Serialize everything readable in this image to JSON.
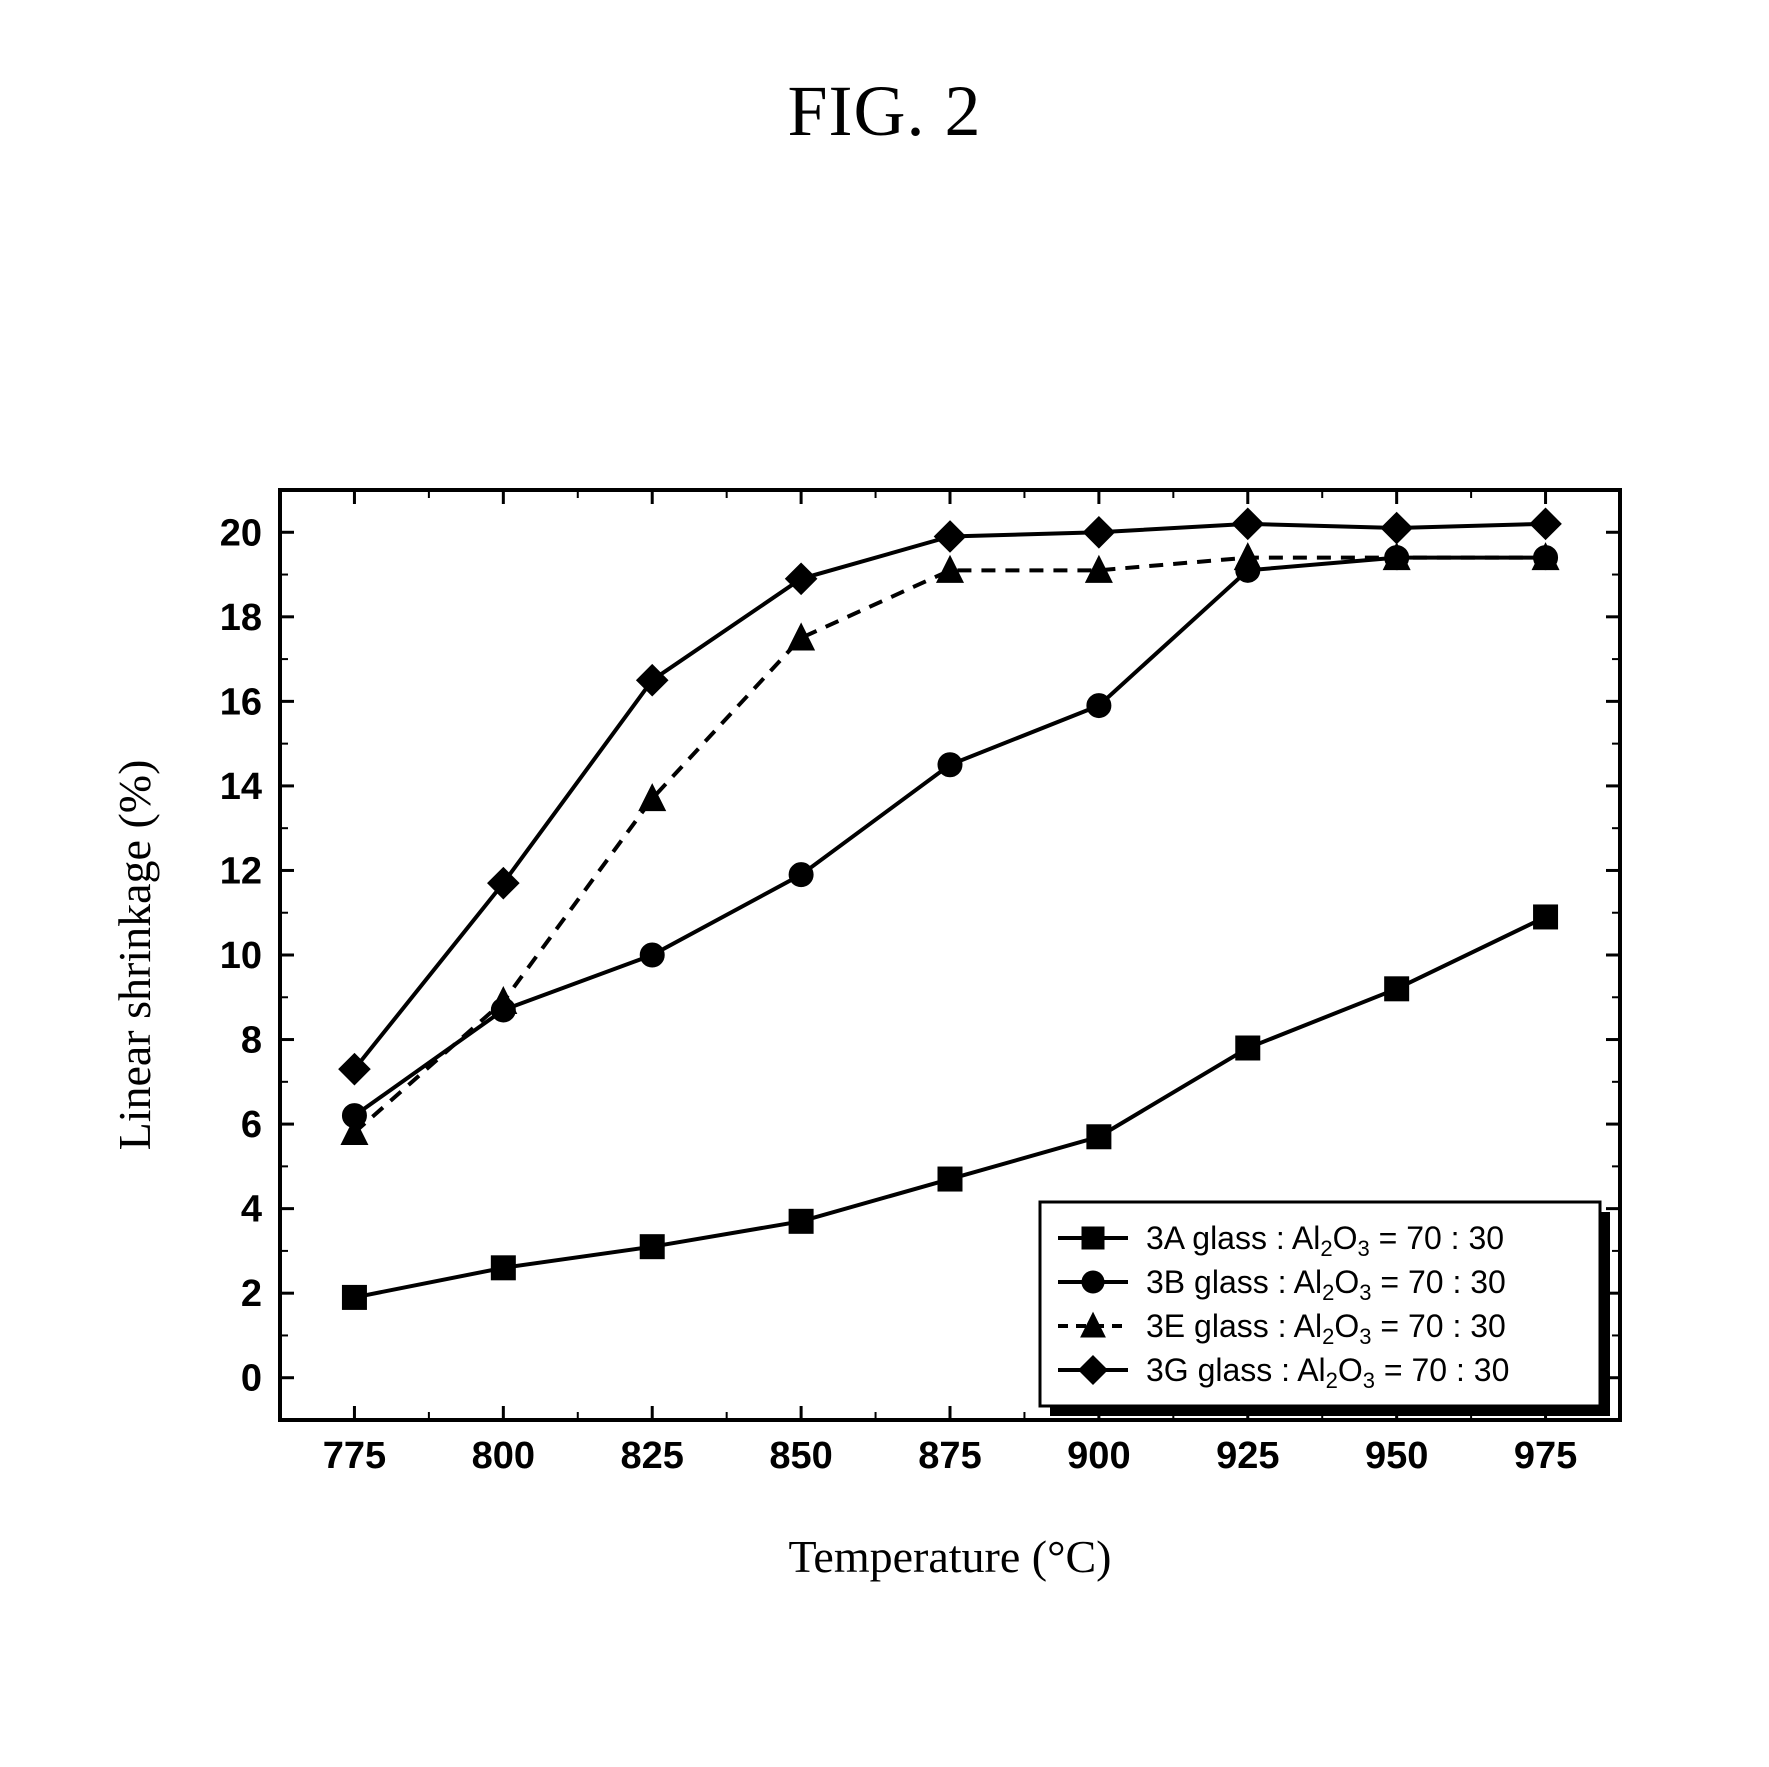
{
  "figure": {
    "title": "FIG. 2",
    "x_axis_label": "Temperature (°C)",
    "y_axis_label": "Linear shrinkage (%)",
    "background_color": "#ffffff",
    "axis_color": "#000000",
    "tick_inside": true,
    "xlim": [
      762.5,
      987.5
    ],
    "ylim": [
      -1,
      21
    ],
    "xticks": [
      775,
      800,
      825,
      850,
      875,
      900,
      925,
      950,
      975
    ],
    "yticks": [
      0,
      2,
      4,
      6,
      8,
      10,
      12,
      14,
      16,
      18,
      20
    ],
    "tick_font_size": 38,
    "tick_font_weight": 700,
    "axis_label_font_size": 46,
    "line_width": 4,
    "marker_size": 12,
    "legend": {
      "position": "bottom-right",
      "bg": "#ffffff",
      "border_color": "#000000",
      "shadow_color": "#000000",
      "title": null,
      "items": [
        {
          "label_prefix": "3A glass : Al",
          "label_sub": "2",
          "label_mid": "O",
          "label_sub2": "3",
          "label_suffix": " = 70 : 30",
          "series_key": "3A"
        },
        {
          "label_prefix": "3B glass : Al",
          "label_sub": "2",
          "label_mid": "O",
          "label_sub2": "3",
          "label_suffix": " = 70 : 30",
          "series_key": "3B"
        },
        {
          "label_prefix": "3E glass : Al",
          "label_sub": "2",
          "label_mid": "O",
          "label_sub2": "3",
          "label_suffix": " = 70 : 30",
          "series_key": "3E"
        },
        {
          "label_prefix": "3G glass : Al",
          "label_sub": "2",
          "label_mid": "O",
          "label_sub2": "3",
          "label_suffix": " = 70 : 30",
          "series_key": "3G"
        }
      ]
    },
    "series": {
      "3A": {
        "marker": "square",
        "dash": "solid",
        "color": "#000000",
        "x": [
          775,
          800,
          825,
          850,
          875,
          900,
          925,
          950,
          975
        ],
        "y": [
          1.9,
          2.6,
          3.1,
          3.7,
          4.7,
          5.7,
          7.8,
          9.2,
          10.9
        ]
      },
      "3B": {
        "marker": "circle",
        "dash": "solid",
        "color": "#000000",
        "x": [
          775,
          800,
          825,
          850,
          875,
          900,
          925,
          950,
          975
        ],
        "y": [
          6.2,
          8.7,
          10.0,
          11.9,
          14.5,
          15.9,
          19.1,
          19.4,
          19.4
        ]
      },
      "3E": {
        "marker": "triangle",
        "dash": "dashed",
        "color": "#000000",
        "x": [
          775,
          800,
          825,
          850,
          875,
          900,
          925,
          950,
          975
        ],
        "y": [
          5.8,
          8.9,
          13.7,
          17.5,
          19.1,
          19.1,
          19.4,
          19.4,
          19.4
        ]
      },
      "3G": {
        "marker": "diamond",
        "dash": "solid",
        "color": "#000000",
        "x": [
          775,
          800,
          825,
          850,
          875,
          900,
          925,
          950,
          975
        ],
        "y": [
          7.3,
          11.7,
          16.5,
          18.9,
          19.9,
          20.0,
          20.2,
          20.1,
          20.2
        ]
      }
    }
  }
}
